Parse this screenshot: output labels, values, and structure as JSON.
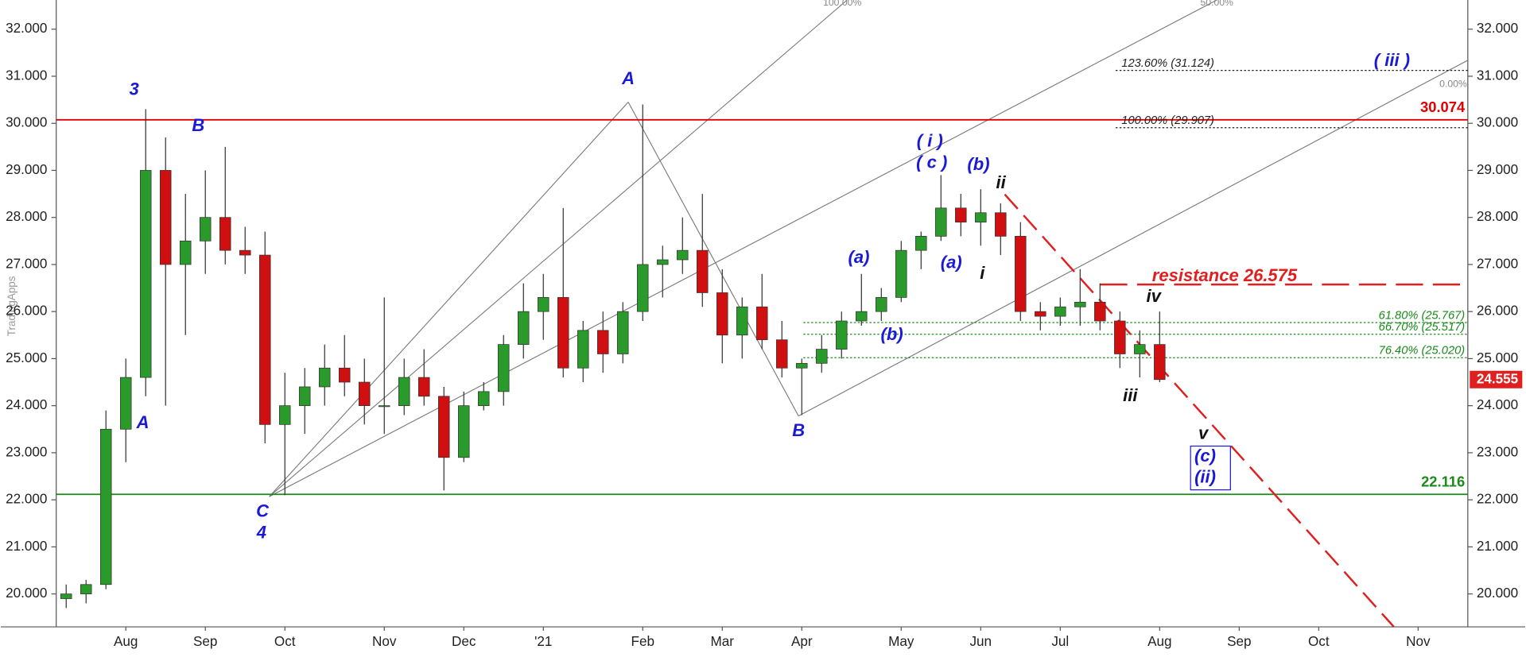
{
  "chart_data": {
    "type": "candlestick",
    "watermark": "TradingApps",
    "categories": [
      null,
      null,
      null,
      "Aug",
      null,
      null,
      null,
      "Sep",
      null,
      null,
      null,
      "Oct",
      null,
      null,
      null,
      null,
      "Nov",
      null,
      null,
      null,
      "Dec",
      null,
      null,
      null,
      "'21",
      null,
      null,
      null,
      null,
      "Feb",
      null,
      null,
      null,
      "Mar",
      null,
      null,
      null,
      "Apr",
      null,
      null,
      null,
      null,
      "May",
      null,
      null,
      null,
      "Jun",
      null,
      null,
      null,
      "Jul",
      null,
      null,
      null,
      null,
      "Aug",
      null,
      null,
      null,
      "Sep",
      null,
      null,
      null,
      "Oct",
      null,
      null,
      null,
      null,
      "Nov",
      null,
      null
    ],
    "open": [
      19.9,
      20.0,
      20.2,
      23.5,
      24.6,
      29.0,
      27.0,
      27.5,
      28.0,
      27.3,
      27.2,
      23.6,
      24.0,
      24.4,
      24.8,
      24.5,
      24.0,
      24.0,
      24.6,
      24.2,
      22.9,
      24.0,
      24.3,
      25.3,
      26.0,
      26.3,
      24.8,
      25.6,
      25.1,
      26.0,
      27.0,
      27.1,
      27.3,
      26.4,
      25.5,
      26.1,
      25.4,
      24.8,
      24.9,
      25.2,
      25.8,
      26.0,
      26.3,
      27.3,
      27.6,
      28.2,
      27.9,
      28.1,
      27.6,
      26.0,
      25.9,
      26.1,
      26.2,
      25.8,
      25.1,
      25.3,
      null,
      null,
      null,
      null,
      null,
      null,
      null,
      null,
      null,
      null,
      null,
      null,
      null,
      null,
      null
    ],
    "high": [
      20.2,
      20.3,
      23.9,
      25.0,
      30.3,
      29.7,
      28.5,
      29.0,
      29.5,
      27.8,
      27.7,
      24.7,
      24.8,
      25.3,
      25.5,
      25.0,
      26.3,
      25.0,
      25.2,
      24.4,
      24.3,
      24.5,
      25.5,
      26.6,
      26.8,
      28.2,
      25.8,
      26.0,
      26.2,
      30.4,
      27.4,
      28.0,
      28.5,
      26.9,
      26.3,
      26.8,
      25.8,
      25.0,
      25.5,
      26.0,
      26.8,
      26.5,
      27.5,
      27.7,
      28.9,
      28.5,
      28.6,
      28.3,
      27.9,
      26.2,
      26.3,
      26.9,
      26.6,
      26.0,
      25.6,
      26.0,
      null,
      null,
      null,
      null,
      null,
      null,
      null,
      null,
      null,
      null,
      null,
      null,
      null,
      null,
      null
    ],
    "low": [
      19.7,
      19.8,
      20.1,
      22.8,
      24.2,
      24.0,
      25.5,
      26.8,
      27.0,
      26.8,
      23.2,
      22.1,
      23.4,
      24.0,
      24.2,
      23.6,
      23.4,
      23.8,
      24.0,
      22.2,
      22.8,
      23.9,
      24.0,
      25.0,
      25.4,
      24.6,
      24.5,
      24.7,
      24.9,
      25.8,
      26.3,
      26.8,
      26.1,
      24.9,
      25.0,
      25.2,
      24.6,
      23.8,
      24.7,
      25.0,
      25.7,
      25.8,
      26.2,
      26.9,
      27.5,
      27.6,
      27.4,
      27.2,
      25.8,
      25.6,
      25.7,
      25.7,
      25.6,
      24.8,
      24.6,
      24.5,
      null,
      null,
      null,
      null,
      null,
      null,
      null,
      null,
      null,
      null,
      null,
      null,
      null,
      null,
      null
    ],
    "close": [
      20.0,
      20.2,
      23.5,
      24.6,
      29.0,
      27.0,
      27.5,
      28.0,
      27.3,
      27.2,
      23.6,
      24.0,
      24.4,
      24.8,
      24.5,
      24.0,
      24.0,
      24.6,
      24.2,
      22.9,
      24.0,
      24.3,
      25.3,
      26.0,
      26.3,
      24.8,
      25.6,
      25.1,
      26.0,
      27.0,
      27.1,
      27.3,
      26.4,
      25.5,
      26.1,
      25.4,
      24.8,
      24.9,
      25.2,
      25.8,
      26.0,
      26.3,
      27.3,
      27.6,
      28.2,
      27.9,
      28.1,
      27.6,
      26.0,
      25.9,
      26.1,
      26.2,
      25.8,
      25.1,
      25.3,
      24.555,
      null,
      null,
      null,
      null,
      null,
      null,
      null,
      null,
      null,
      null,
      null,
      null,
      null,
      null,
      null
    ],
    "up_color": "#2a9a2a",
    "down_color": "#d01010",
    "ylim": [
      19.3,
      32.62
    ],
    "yticks": [
      {
        "value": 20,
        "label": "20.000"
      },
      {
        "value": 21,
        "label": "21.000"
      },
      {
        "value": 22,
        "label": "22.000"
      },
      {
        "value": 23,
        "label": "23.000"
      },
      {
        "value": 24,
        "label": "24.000"
      },
      {
        "value": 25,
        "label": "25.000"
      },
      {
        "value": 26,
        "label": "26.000"
      },
      {
        "value": 27,
        "label": "27.000"
      },
      {
        "value": 28,
        "label": "28.000"
      },
      {
        "value": 29,
        "label": "29.000"
      },
      {
        "value": 30,
        "label": "30.000"
      },
      {
        "value": 31,
        "label": "31.000"
      },
      {
        "value": 32,
        "label": "32.000"
      }
    ],
    "levels": [
      {
        "value": 30.074,
        "label": "30.074",
        "color": "#e00000"
      },
      {
        "value": 22.116,
        "label": "22.116",
        "color": "#1a8a1a"
      }
    ],
    "resistance": {
      "value": 26.575,
      "label": "resistance 26.575",
      "color": "#e02020"
    },
    "fib_levels": [
      {
        "value": 31.124,
        "label": "123.60% (31.124)",
        "color": "#222222"
      },
      {
        "value": 29.907,
        "label": "100.00% (29.907)",
        "color": "#222222"
      },
      {
        "value": 25.767,
        "label": "61.80% (25.767)",
        "color": "#1a8a1a"
      },
      {
        "value": 25.517,
        "label": "66.70% (25.517)",
        "color": "#1a8a1a"
      },
      {
        "value": 25.02,
        "label": "76.40% (25.020)",
        "color": "#1a8a1a"
      }
    ],
    "last_price": {
      "value": 24.555,
      "label": "24.555",
      "color": "#e02020"
    },
    "channel_labels": [
      "100.00%",
      "50.00%",
      "0.00%"
    ],
    "annotations": [
      {
        "text": "3",
        "color": "#1a1ad6"
      },
      {
        "text": "B",
        "color": "#1a1ad6"
      },
      {
        "text": "A",
        "color": "#1a1ad6"
      },
      {
        "text": "C",
        "color": "#1a1ad6"
      },
      {
        "text": "4",
        "color": "#1a1ad6"
      },
      {
        "text": "A",
        "color": "#1a1ad6"
      },
      {
        "text": "B",
        "color": "#1a1ad6"
      },
      {
        "text": "( i )",
        "color": "#1a1ad6"
      },
      {
        "text": "( c )",
        "color": "#1a1ad6"
      },
      {
        "text": "(b)",
        "color": "#1a1ad6"
      },
      {
        "text": "ii",
        "color": "#111111"
      },
      {
        "text": "i",
        "color": "#111111"
      },
      {
        "text": "(a)",
        "color": "#1a1ad6"
      },
      {
        "text": "(a)",
        "color": "#1a1ad6"
      },
      {
        "text": "(b)",
        "color": "#1a1ad6"
      },
      {
        "text": "iv",
        "color": "#111111"
      },
      {
        "text": "iii",
        "color": "#111111"
      },
      {
        "text": "v",
        "color": "#111111"
      },
      {
        "text": "(c)",
        "color": "#1a1ad6"
      },
      {
        "text": "(ii)",
        "color": "#1a1ad6"
      },
      {
        "text": "( iii )",
        "color": "#1a1ad6"
      }
    ]
  }
}
